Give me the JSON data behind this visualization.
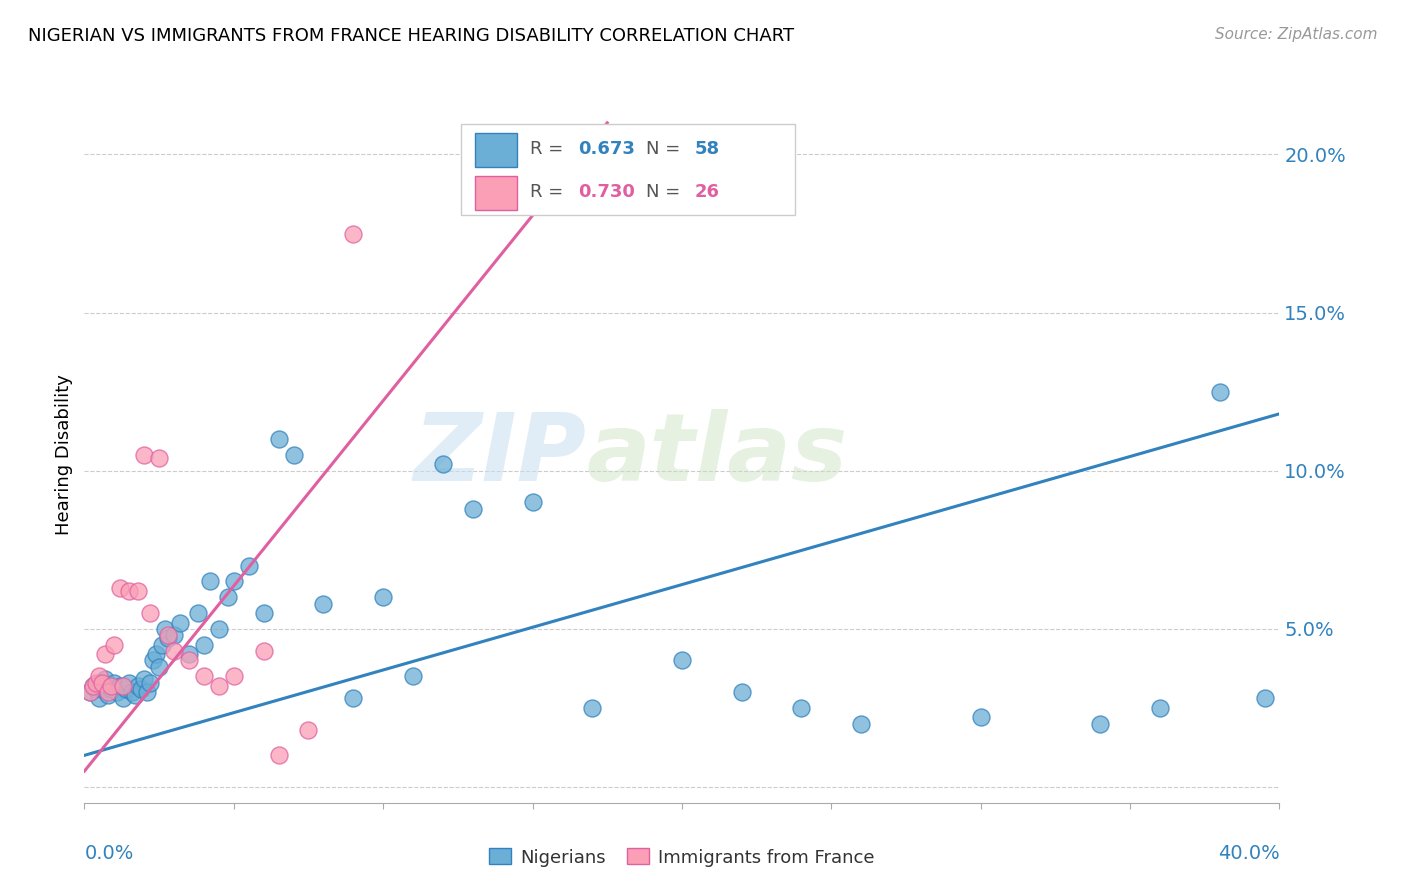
{
  "title": "NIGERIAN VS IMMIGRANTS FROM FRANCE HEARING DISABILITY CORRELATION CHART",
  "source": "Source: ZipAtlas.com",
  "ylabel": "Hearing Disability",
  "yticks": [
    0.0,
    0.05,
    0.1,
    0.15,
    0.2
  ],
  "ytick_labels": [
    "",
    "5.0%",
    "10.0%",
    "15.0%",
    "20.0%"
  ],
  "xlim": [
    0.0,
    0.4
  ],
  "ylim": [
    -0.005,
    0.215
  ],
  "blue_R": 0.673,
  "blue_N": 58,
  "pink_R": 0.73,
  "pink_N": 26,
  "blue_color": "#6baed6",
  "pink_color": "#fa9fb5",
  "blue_line_color": "#3182bd",
  "pink_line_color": "#e05fa0",
  "legend_label_blue": "Nigerians",
  "legend_label_pink": "Immigrants from France",
  "watermark_zip": "ZIP",
  "watermark_atlas": "atlas",
  "blue_scatter_x": [
    0.002,
    0.003,
    0.004,
    0.005,
    0.005,
    0.006,
    0.007,
    0.008,
    0.009,
    0.01,
    0.011,
    0.012,
    0.013,
    0.014,
    0.015,
    0.016,
    0.017,
    0.018,
    0.019,
    0.02,
    0.021,
    0.022,
    0.023,
    0.024,
    0.025,
    0.026,
    0.027,
    0.028,
    0.03,
    0.032,
    0.035,
    0.038,
    0.04,
    0.042,
    0.045,
    0.048,
    0.05,
    0.055,
    0.06,
    0.065,
    0.07,
    0.08,
    0.09,
    0.1,
    0.11,
    0.12,
    0.13,
    0.15,
    0.17,
    0.2,
    0.22,
    0.24,
    0.26,
    0.3,
    0.34,
    0.36,
    0.38,
    0.395
  ],
  "blue_scatter_y": [
    0.03,
    0.032,
    0.031,
    0.033,
    0.028,
    0.031,
    0.034,
    0.029,
    0.031,
    0.033,
    0.03,
    0.032,
    0.028,
    0.031,
    0.033,
    0.03,
    0.029,
    0.032,
    0.031,
    0.034,
    0.03,
    0.033,
    0.04,
    0.042,
    0.038,
    0.045,
    0.05,
    0.047,
    0.048,
    0.052,
    0.042,
    0.055,
    0.045,
    0.065,
    0.05,
    0.06,
    0.065,
    0.07,
    0.055,
    0.11,
    0.105,
    0.058,
    0.028,
    0.06,
    0.035,
    0.102,
    0.088,
    0.09,
    0.025,
    0.04,
    0.03,
    0.025,
    0.02,
    0.022,
    0.02,
    0.025,
    0.125,
    0.028
  ],
  "pink_scatter_x": [
    0.002,
    0.003,
    0.004,
    0.005,
    0.006,
    0.007,
    0.008,
    0.009,
    0.01,
    0.012,
    0.013,
    0.015,
    0.018,
    0.02,
    0.022,
    0.025,
    0.028,
    0.03,
    0.035,
    0.04,
    0.045,
    0.05,
    0.06,
    0.065,
    0.075,
    0.09
  ],
  "pink_scatter_y": [
    0.03,
    0.032,
    0.033,
    0.035,
    0.033,
    0.042,
    0.03,
    0.032,
    0.045,
    0.063,
    0.032,
    0.062,
    0.062,
    0.105,
    0.055,
    0.104,
    0.048,
    0.043,
    0.04,
    0.035,
    0.032,
    0.035,
    0.043,
    0.01,
    0.018,
    0.175
  ],
  "blue_trend_x": [
    0.0,
    0.4
  ],
  "blue_trend_y": [
    0.01,
    0.118
  ],
  "pink_trend_x": [
    0.0,
    0.175
  ],
  "pink_trend_y": [
    0.005,
    0.21
  ]
}
